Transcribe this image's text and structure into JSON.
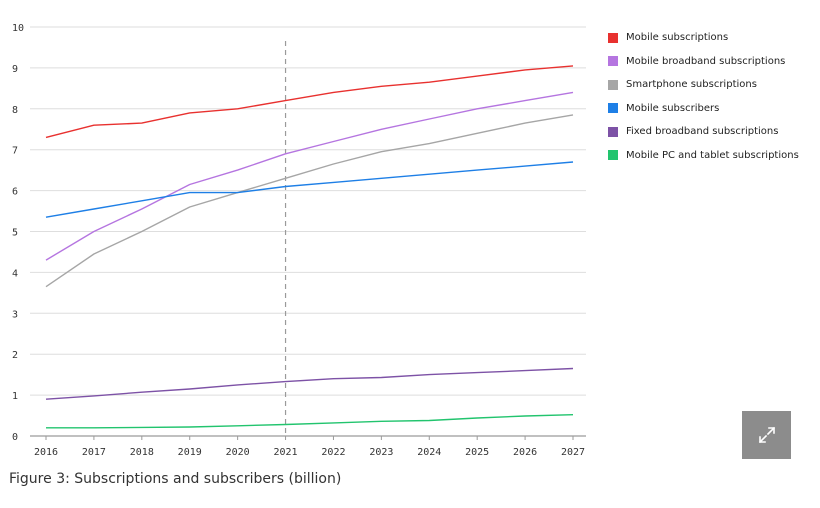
{
  "chart_data": {
    "type": "line",
    "title": "",
    "xlabel": "",
    "ylabel": "",
    "x": [
      "2016",
      "2017",
      "2018",
      "2019",
      "2020",
      "2021",
      "2022",
      "2023",
      "2024",
      "2025",
      "2026",
      "2027"
    ],
    "ylim": [
      0,
      10
    ],
    "yticks": [
      "0",
      "1",
      "2",
      "3",
      "4",
      "5",
      "6",
      "7",
      "8",
      "9",
      "10"
    ],
    "grid": true,
    "forecast_marker_x": "2021",
    "series": [
      {
        "name": "Mobile subscriptions",
        "color": "#e8312f",
        "values": [
          7.3,
          7.6,
          7.65,
          7.9,
          8.0,
          8.2,
          8.4,
          8.55,
          8.65,
          8.8,
          8.95,
          9.05
        ]
      },
      {
        "name": "Mobile broadband subscriptions",
        "color": "#b575e0",
        "values": [
          4.3,
          5.0,
          5.55,
          6.15,
          6.5,
          6.9,
          7.2,
          7.5,
          7.75,
          8.0,
          8.2,
          8.4
        ]
      },
      {
        "name": "Smartphone subscriptions",
        "color": "#a6a6a6",
        "values": [
          3.65,
          4.45,
          5.0,
          5.6,
          5.95,
          6.3,
          6.65,
          6.95,
          7.15,
          7.4,
          7.65,
          7.85
        ]
      },
      {
        "name": "Mobile subscribers",
        "color": "#1e7fe6",
        "values": [
          5.35,
          5.55,
          5.75,
          5.95,
          5.95,
          6.1,
          6.2,
          6.3,
          6.4,
          6.5,
          6.6,
          6.7
        ]
      },
      {
        "name": "Fixed broadband subscriptions",
        "color": "#7d52a6",
        "values": [
          0.9,
          0.98,
          1.07,
          1.15,
          1.25,
          1.33,
          1.4,
          1.43,
          1.5,
          1.55,
          1.6,
          1.65
        ]
      },
      {
        "name": "Mobile PC and tablet subscriptions",
        "color": "#22c46e",
        "values": [
          0.2,
          0.2,
          0.21,
          0.22,
          0.25,
          0.28,
          0.32,
          0.36,
          0.38,
          0.44,
          0.49,
          0.52
        ]
      }
    ]
  },
  "caption": "Figure 3: Subscriptions and subscribers (billion)",
  "icons": {
    "expand": "expand-icon"
  }
}
